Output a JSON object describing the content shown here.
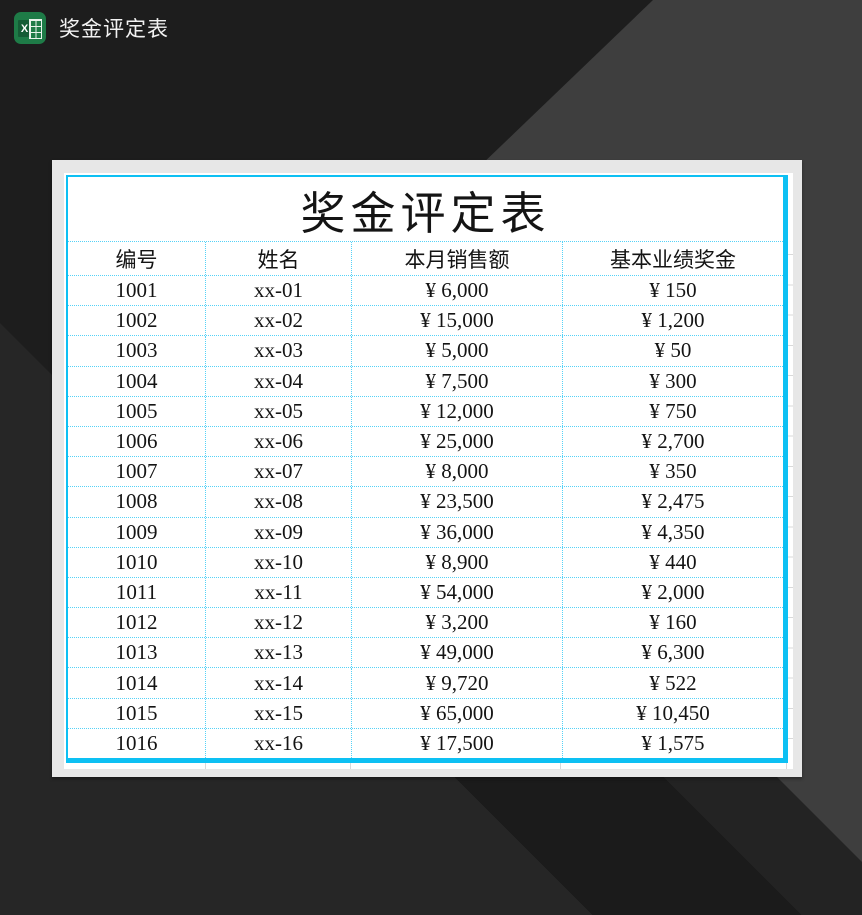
{
  "window": {
    "title": "奖金评定表",
    "app_icon": "excel-icon",
    "app_icon_letter": "X"
  },
  "sheet": {
    "title": "奖金评定表",
    "columns": [
      "编号",
      "姓名",
      "本月销售额",
      "基本业绩奖金"
    ],
    "rows": [
      [
        "1001",
        "xx-01",
        "¥ 6,000",
        "¥ 150"
      ],
      [
        "1002",
        "xx-02",
        "¥ 15,000",
        "¥ 1,200"
      ],
      [
        "1003",
        "xx-03",
        "¥ 5,000",
        "¥ 50"
      ],
      [
        "1004",
        "xx-04",
        "¥ 7,500",
        "¥ 300"
      ],
      [
        "1005",
        "xx-05",
        "¥ 12,000",
        "¥ 750"
      ],
      [
        "1006",
        "xx-06",
        "¥ 25,000",
        "¥ 2,700"
      ],
      [
        "1007",
        "xx-07",
        "¥ 8,000",
        "¥ 350"
      ],
      [
        "1008",
        "xx-08",
        "¥ 23,500",
        "¥ 2,475"
      ],
      [
        "1009",
        "xx-09",
        "¥ 36,000",
        "¥ 4,350"
      ],
      [
        "1010",
        "xx-10",
        "¥ 8,900",
        "¥ 440"
      ],
      [
        "1011",
        "xx-11",
        "¥ 54,000",
        "¥ 2,000"
      ],
      [
        "1012",
        "xx-12",
        "¥ 3,200",
        "¥ 160"
      ],
      [
        "1013",
        "xx-13",
        "¥ 49,000",
        "¥ 6,300"
      ],
      [
        "1014",
        "xx-14",
        "¥ 9,720",
        "¥ 522"
      ],
      [
        "1015",
        "xx-15",
        "¥ 65,000",
        "¥ 10,450"
      ],
      [
        "1016",
        "xx-16",
        "¥ 17,500",
        "¥ 1,575"
      ]
    ]
  },
  "colors": {
    "accent_border": "#0dc0f3",
    "accent_dotted": "#55d2f7",
    "panel": "#e7e7e7",
    "page": "#ffffff",
    "excel_green": "#1e7b47",
    "background_dark": "#1d1d1d",
    "background_mid": "#3e3e3e"
  }
}
